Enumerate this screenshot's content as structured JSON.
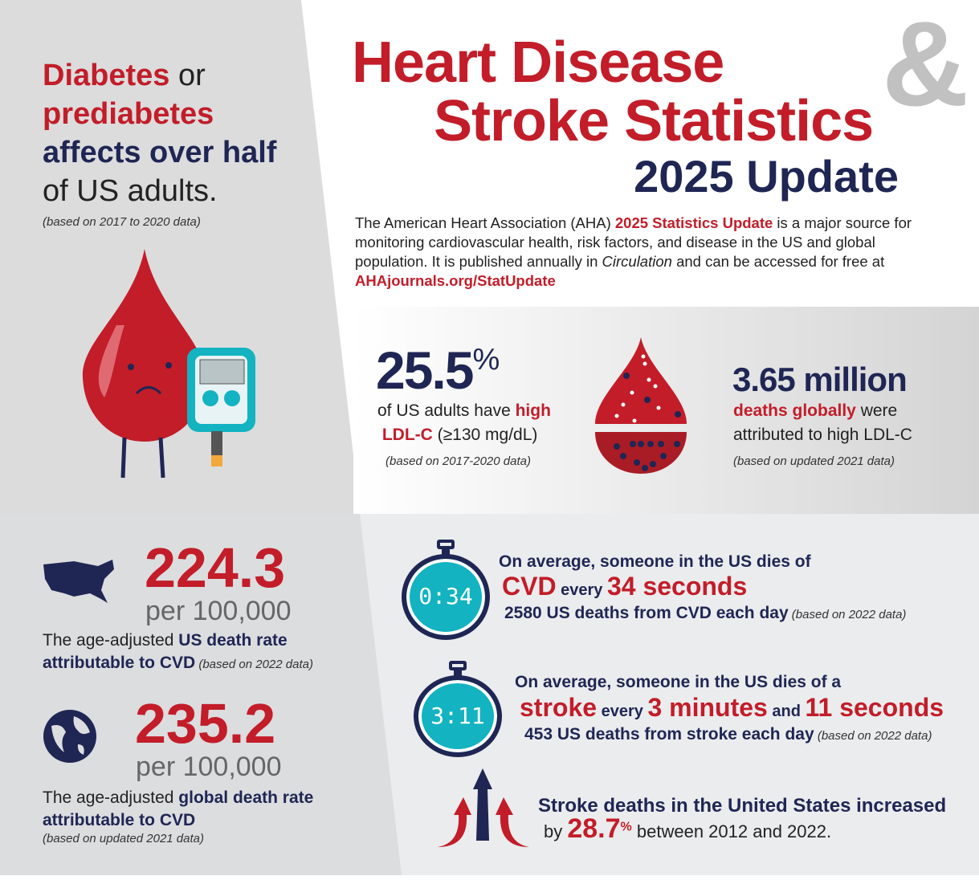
{
  "colors": {
    "red": "#c21d29",
    "navy": "#1f2654",
    "teal": "#13b3c1",
    "gray_amp": "#c1c1c1"
  },
  "title": {
    "line1": "Heart Disease",
    "amp": "&",
    "line2": "Stroke Statistics",
    "line3": "2025 Update"
  },
  "intro": {
    "p1": "The American Heart Association (AHA) ",
    "highlight": "2025 Statistics Update",
    "p2": " is a major source for monitoring cardiovascular health, risk factors, and disease in the US and global population. It is published annually in ",
    "journal": "Circulation",
    "p3": " and can be accessed for free at ",
    "link": "AHAjournals.org/StatUpdate"
  },
  "diabetes": {
    "w1": "Diabetes",
    "w2": " or",
    "w3": "prediabetes",
    "w4": "affects over half",
    "w5": "of US adults.",
    "note": "(based on 2017 to 2020 data)"
  },
  "ldl": {
    "value": "25.5",
    "unit": "%",
    "t1": "of US adults have ",
    "t2": "high",
    "t3": "LDL-C",
    "t4": " (≥130 mg/dL)",
    "note": "(based on 2017-2020 data)"
  },
  "global_ldl": {
    "value": "3.65 million",
    "t1": "deaths globally",
    "t2": " were",
    "t3": "attributed to high LDL-C",
    "note": "(based on updated 2021 data)"
  },
  "us_rate": {
    "value": "224.3",
    "per": "per 100,000",
    "t1": "The age-adjusted ",
    "t2": "US death rate",
    "t3": "attributable to CVD",
    "note": " (based on 2022 data)"
  },
  "global_rate": {
    "value": "235.2",
    "per": "per 100,000",
    "t1": "The age-adjusted ",
    "t2": "global death rate",
    "t3": "attributable to CVD",
    "note": "(based on updated 2021 data)"
  },
  "cvd": {
    "timer": "0:34",
    "l1": "On average, someone in the US dies of",
    "w1": "CVD",
    "w2": " every ",
    "w3": "34 seconds",
    "l3": "2580 US deaths from CVD each day",
    "note": " (based on 2022 data)"
  },
  "stroke": {
    "timer": "3:11",
    "l1": "On average, someone in the US dies of a",
    "w1": "stroke",
    "w2": " every ",
    "w3": "3 minutes",
    "w4": " and ",
    "w5": "11 seconds",
    "l3": "453 US deaths from stroke each day",
    "note": " (based on 2022 data)"
  },
  "increase": {
    "l1": "Stroke deaths in the United States increased",
    "by": "by ",
    "value": "28.7",
    "unit": "%",
    "rest": " between 2012 and 2022."
  }
}
